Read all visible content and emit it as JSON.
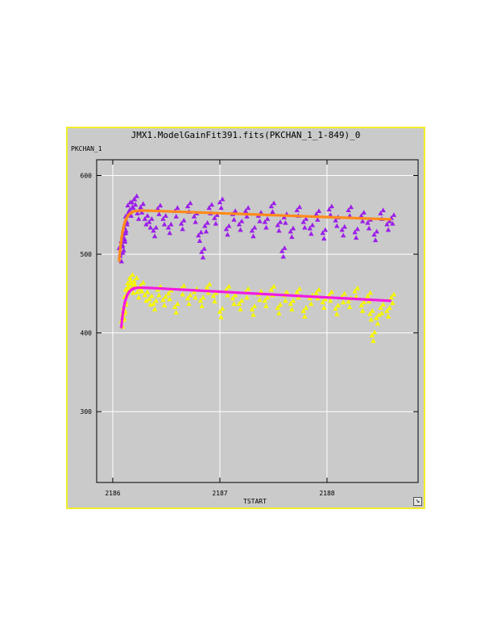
{
  "window": {
    "title": "JMX1.ModelGainFit391.fits(PKCHAN_1_1-849)_0",
    "resize_icon": "resize-arrow-icon"
  },
  "chart_data": {
    "type": "scatter",
    "title": "JMX1.ModelGainFit391.fits(PKCHAN_1_1-849)_0",
    "xlabel": "TSTART",
    "ylabel": "PKCHAN_1",
    "xlim": [
      2185.85,
      2188.85
    ],
    "ylim": [
      210,
      620
    ],
    "xticks": [
      2186,
      2187,
      2188
    ],
    "xtick_labels": [
      "2186",
      "2187",
      "2188"
    ],
    "yticks": [
      300,
      400,
      500,
      600
    ],
    "ytick_labels": [
      "300",
      "400",
      "500",
      "600"
    ],
    "grid": true,
    "series": [
      {
        "kind": "points",
        "marker": "triangle",
        "color": "#9b1fe8",
        "x": [
          2186.06,
          2186.07,
          2186.08,
          2186.09,
          2186.1,
          2186.11,
          2186.12,
          2186.14,
          2186.16,
          2186.18,
          2186.2,
          2186.23,
          2186.26,
          2186.3,
          2186.34,
          2186.38,
          2186.42,
          2186.47,
          2186.52,
          2186.58,
          2186.64,
          2186.7,
          2186.76,
          2186.8,
          2186.83,
          2186.86,
          2186.9,
          2186.95,
          2187.0,
          2187.06,
          2187.12,
          2187.18,
          2187.24,
          2187.3,
          2187.36,
          2187.42,
          2187.48,
          2187.54,
          2187.58,
          2187.6,
          2187.66,
          2187.72,
          2187.78,
          2187.84,
          2187.9,
          2187.96,
          2188.02,
          2188.08,
          2188.14,
          2188.2,
          2188.26,
          2188.32,
          2188.38,
          2188.44,
          2188.5,
          2188.56,
          2188.6
        ],
        "y": [
          508,
          498,
          517,
          512,
          526,
          534,
          548,
          562,
          556,
          566,
          570,
          552,
          560,
          545,
          541,
          530,
          558,
          545,
          534,
          555,
          539,
          561,
          548,
          524,
          503,
          536,
          559,
          546,
          566,
          532,
          551,
          538,
          555,
          530,
          549,
          541,
          561,
          537,
          504,
          547,
          529,
          556,
          541,
          533,
          551,
          527,
          557,
          543,
          531,
          556,
          528,
          549,
          540,
          525,
          552,
          538,
          546
        ]
      },
      {
        "kind": "points",
        "marker": "triangle",
        "color": "#f6f600",
        "x": [
          2186.08,
          2186.09,
          2186.1,
          2186.11,
          2186.12,
          2186.14,
          2186.16,
          2186.18,
          2186.2,
          2186.23,
          2186.26,
          2186.3,
          2186.34,
          2186.38,
          2186.42,
          2186.47,
          2186.52,
          2186.58,
          2186.64,
          2186.7,
          2186.76,
          2186.82,
          2186.88,
          2186.94,
          2187.0,
          2187.06,
          2187.12,
          2187.18,
          2187.24,
          2187.3,
          2187.36,
          2187.42,
          2187.48,
          2187.54,
          2187.6,
          2187.66,
          2187.72,
          2187.78,
          2187.84,
          2187.9,
          2187.96,
          2188.02,
          2188.08,
          2188.14,
          2188.2,
          2188.26,
          2188.32,
          2188.38,
          2188.4,
          2188.42,
          2188.46,
          2188.5,
          2188.56,
          2188.6
        ],
        "y": [
          415,
          424,
          432,
          446,
          455,
          463,
          470,
          458,
          466,
          452,
          460,
          448,
          443,
          437,
          455,
          442,
          450,
          433,
          456,
          444,
          452,
          441,
          458,
          447,
          427,
          455,
          444,
          437,
          452,
          430,
          449,
          441,
          455,
          432,
          448,
          437,
          452,
          428,
          444,
          451,
          439,
          448,
          431,
          446,
          440,
          453,
          435,
          447,
          424,
          397,
          419,
          432,
          428,
          445
        ]
      },
      {
        "kind": "fit",
        "marker": "cross",
        "color": "#ff8a1c",
        "A": 555.5,
        "B": -4.9,
        "amp": 65,
        "tau": 0.038,
        "x0": 2186.06,
        "x_end": 2188.6
      },
      {
        "kind": "fit",
        "marker": "cross",
        "color": "#f21ce0",
        "A": 457.5,
        "B": -7.3,
        "amp": 52,
        "tau": 0.035,
        "x0": 2186.08,
        "x_end": 2188.6
      }
    ]
  }
}
